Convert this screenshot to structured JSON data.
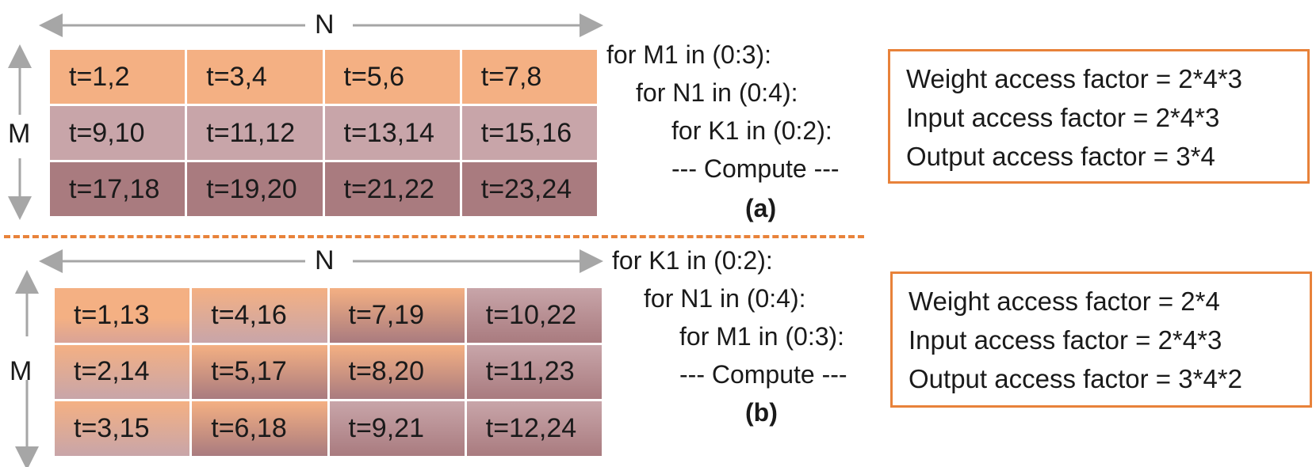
{
  "colors": {
    "level1": "#f4b083",
    "level2": "#c8a5a9",
    "level3": "#a97b7f",
    "box_border": "#e8823a",
    "axis_gray": "#a6a6a6"
  },
  "panel_a": {
    "n_label": "N",
    "m_label": "M",
    "loop_lines": [
      "for M1 in (0:3):",
      "for N1 in (0:4):",
      "for K1 in (0:2):",
      "--- Compute ---"
    ],
    "label": "(a)",
    "cells": [
      [
        "t=1,2",
        "t=3,4",
        "t=5,6",
        "t=7,8"
      ],
      [
        "t=9,10",
        "t=11,12",
        "t=13,14",
        "t=15,16"
      ],
      [
        "t=17,18",
        "t=19,20",
        "t=21,22",
        "t=23,24"
      ]
    ],
    "factors": [
      "Weight access factor = 2*4*3",
      "Input access factor = 2*4*3",
      "Output access factor = 3*4"
    ]
  },
  "panel_b": {
    "n_label": "N",
    "m_label": "M",
    "loop_lines": [
      "for K1 in (0:2):",
      "for N1 in (0:4):",
      "for M1 in (0:3):",
      "--- Compute ---"
    ],
    "label": "(b)",
    "cells": [
      [
        "t=1,13",
        "t=4,16",
        "t=7,19",
        "t=10,22"
      ],
      [
        "t=2,14",
        "t=5,17",
        "t=8,20",
        "t=11,23"
      ],
      [
        "t=3,15",
        "t=6,18",
        "t=9,21",
        "t=12,24"
      ]
    ],
    "factors": [
      "Weight access factor = 2*4",
      "Input access factor = 2*4*3",
      "Output access factor = 3*4*2"
    ]
  }
}
